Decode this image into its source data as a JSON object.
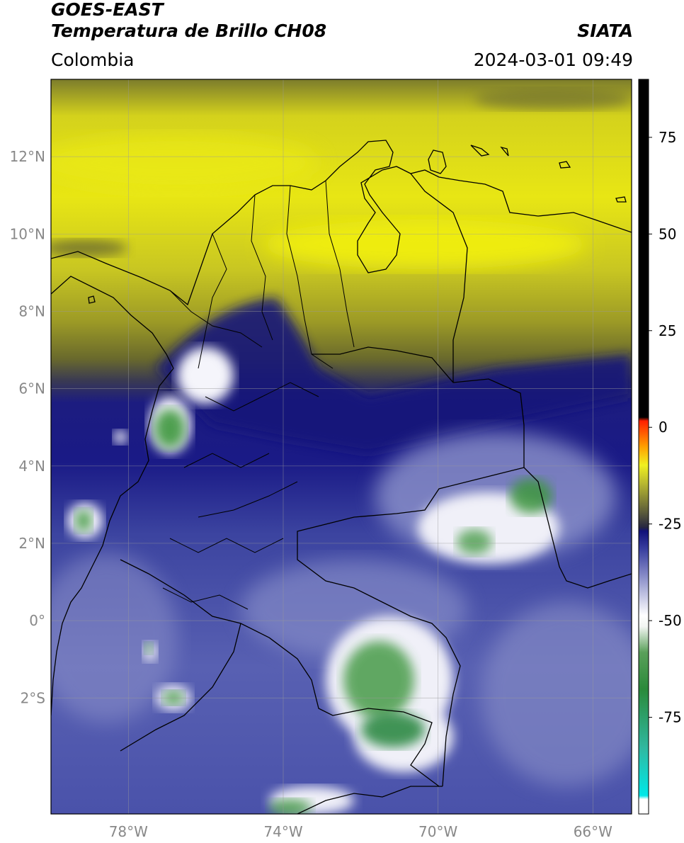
{
  "header": {
    "title_line1": "GOES-EAST",
    "title_line2": "Temperatura de Brillo CH08",
    "brand": "SIATA",
    "region": "Colombia",
    "timestamp": "2024-03-01 09:49"
  },
  "map": {
    "lon_range": [
      -80,
      -65
    ],
    "lat_range": [
      -5,
      14
    ],
    "lon_ticks": [
      {
        "value": -78,
        "label": "78°W"
      },
      {
        "value": -74,
        "label": "74°W"
      },
      {
        "value": -70,
        "label": "70°W"
      },
      {
        "value": -66,
        "label": "66°W"
      }
    ],
    "lat_ticks": [
      {
        "value": 12,
        "label": "12°N"
      },
      {
        "value": 10,
        "label": "10°N"
      },
      {
        "value": 8,
        "label": "8°N"
      },
      {
        "value": 6,
        "label": "6°N"
      },
      {
        "value": 4,
        "label": "4°N"
      },
      {
        "value": 2,
        "label": "2°N"
      },
      {
        "value": 0,
        "label": "0°"
      },
      {
        "value": -2,
        "label": "2°S"
      }
    ],
    "grid": true,
    "colors": {
      "yellow": "#e8e614",
      "olive": "#8c8c28",
      "dark_olive": "#3c3c28",
      "navy": "#1a1a80",
      "blue": "#4e55a8",
      "lavender": "#b4b8e0",
      "white": "#f4f4fa",
      "green": "#3c963c"
    }
  },
  "colorbar": {
    "range": [
      -100,
      90
    ],
    "ticks": [
      {
        "value": 75,
        "label": "75"
      },
      {
        "value": 50,
        "label": "50"
      },
      {
        "value": 25,
        "label": "25"
      },
      {
        "value": 0,
        "label": "0"
      },
      {
        "value": -25,
        "label": "-25"
      },
      {
        "value": -50,
        "label": "-50"
      },
      {
        "value": -75,
        "label": "-75"
      }
    ]
  }
}
